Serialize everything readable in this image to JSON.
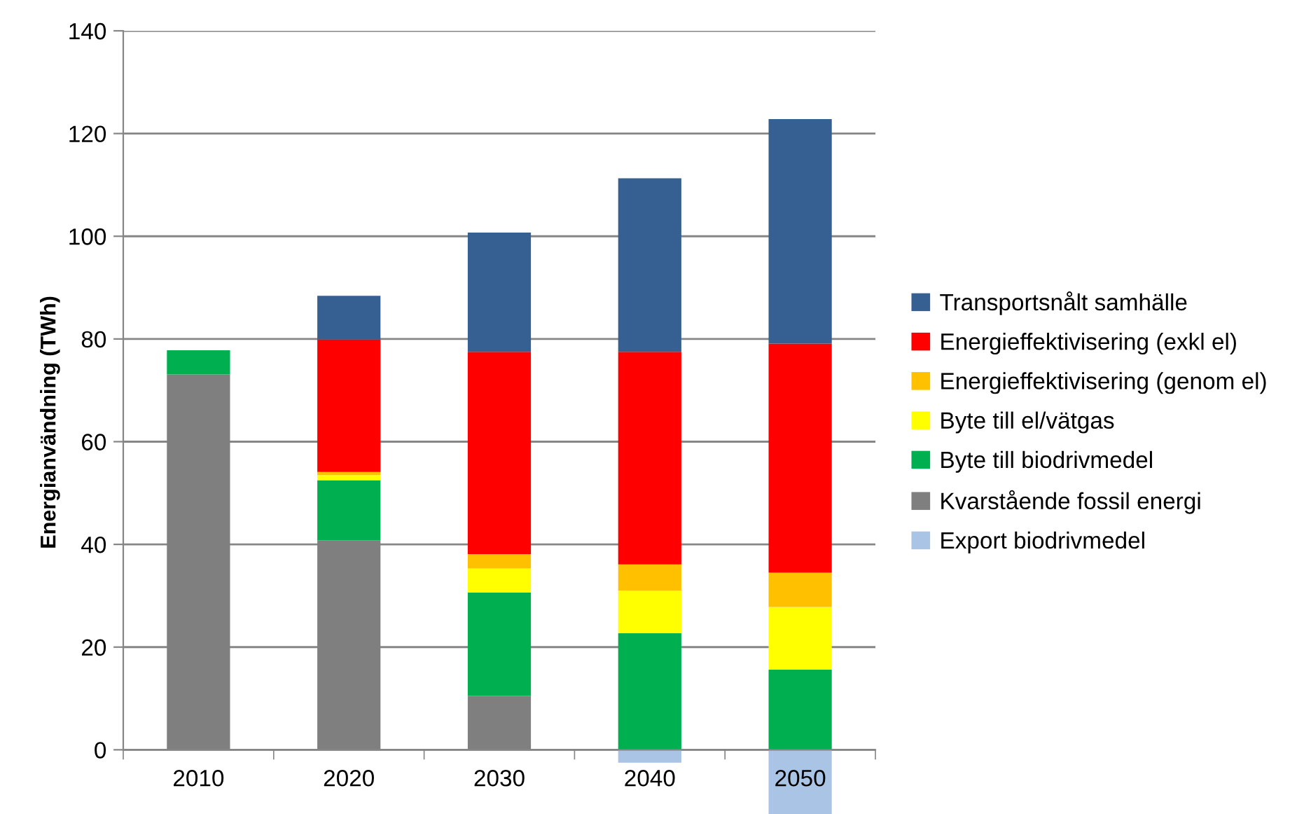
{
  "chart_data": {
    "type": "bar",
    "stacked": true,
    "ylabel": "Energianvändning (TWh)",
    "categories": [
      "2010",
      "2020",
      "2030",
      "2040",
      "2050"
    ],
    "series": [
      {
        "name": "Kvarstående fossil energi",
        "color": "#7f7f7f",
        "values": [
          73.1,
          40.8,
          10.5,
          null,
          null
        ]
      },
      {
        "name": "Byte till biodrivmedel",
        "color": "#00b050",
        "values": [
          4.7,
          11.7,
          20.1,
          22.7,
          15.6
        ]
      },
      {
        "name": "Byte till el/vätgas",
        "color": "#ffff00",
        "values": [
          null,
          1.0,
          4.7,
          8.3,
          12.2
        ]
      },
      {
        "name": "Energieffektivisering (genom el)",
        "color": "#ffc000",
        "values": [
          null,
          0.6,
          2.8,
          5.1,
          6.7
        ]
      },
      {
        "name": "Energieffektivisering (exkl el)",
        "color": "#ff0000",
        "values": [
          null,
          25.8,
          39.4,
          41.4,
          44.6
        ]
      },
      {
        "name": "Transportsnålt samhälle",
        "color": "#366092",
        "values": [
          null,
          8.5,
          23.2,
          33.8,
          43.7
        ]
      },
      {
        "name": "Export biodrivmedel",
        "color": "#a9c4e4",
        "values": [
          null,
          null,
          null,
          -2.5,
          -12.5
        ]
      }
    ],
    "ylim": [
      -12.5,
      140
    ],
    "yticks": [
      0,
      20,
      40,
      60,
      80,
      100,
      120,
      140
    ],
    "grid": "y",
    "legend": "right"
  }
}
